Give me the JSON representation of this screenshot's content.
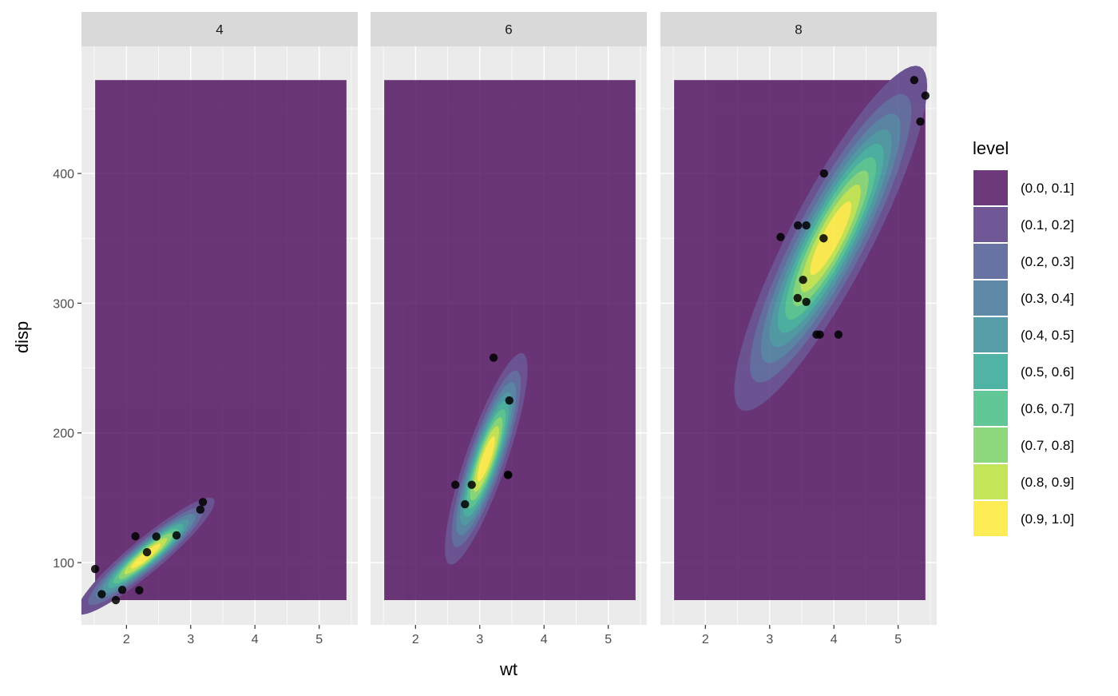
{
  "chart_data": {
    "type": "density_2d_filled_faceted",
    "xlabel": "wt",
    "ylabel": "disp",
    "xlim": [
      1.3,
      5.6
    ],
    "ylim": [
      52,
      498
    ],
    "x_ticks": [
      2,
      3,
      4,
      5
    ],
    "y_ticks": [
      100,
      200,
      300,
      400
    ],
    "grid": true,
    "legend": {
      "title": "level",
      "position": "right",
      "entries": [
        {
          "label": "(0.0, 0.1]",
          "color": "#440154"
        },
        {
          "label": "(0.1, 0.2]",
          "color": "#482878"
        },
        {
          "label": "(0.2, 0.3]",
          "color": "#3E4A89"
        },
        {
          "label": "(0.3, 0.4]",
          "color": "#31688E"
        },
        {
          "label": "(0.4, 0.5]",
          "color": "#26828E"
        },
        {
          "label": "(0.5, 0.6]",
          "color": "#1F9E89"
        },
        {
          "label": "(0.6, 0.7]",
          "color": "#35B779"
        },
        {
          "label": "(0.7, 0.8]",
          "color": "#6DCD59"
        },
        {
          "label": "(0.8, 0.9]",
          "color": "#B4DE2C"
        },
        {
          "label": "(0.9, 1.0]",
          "color": "#FDE725"
        }
      ]
    },
    "density_region": {
      "x": [
        1.513,
        5.424
      ],
      "y": [
        71.1,
        472
      ]
    },
    "panels": [
      {
        "label": "4",
        "density_center": {
          "x": 2.3,
          "y": 105
        },
        "density_spread": {
          "sx": 0.5,
          "sy": 21
        },
        "density_corr": 0.93,
        "points": [
          {
            "x": 2.32,
            "y": 108
          },
          {
            "x": 3.19,
            "y": 146.7
          },
          {
            "x": 3.15,
            "y": 140.8
          },
          {
            "x": 2.2,
            "y": 78.7
          },
          {
            "x": 1.615,
            "y": 75.7
          },
          {
            "x": 1.835,
            "y": 71.1
          },
          {
            "x": 2.465,
            "y": 120.1
          },
          {
            "x": 1.935,
            "y": 79
          },
          {
            "x": 2.14,
            "y": 120.3
          },
          {
            "x": 1.513,
            "y": 95.1
          },
          {
            "x": 2.78,
            "y": 121
          }
        ]
      },
      {
        "label": "6",
        "density_center": {
          "x": 3.1,
          "y": 180
        },
        "density_spread": {
          "sx": 0.3,
          "sy": 38
        },
        "density_corr": 0.85,
        "points": [
          {
            "x": 2.62,
            "y": 160
          },
          {
            "x": 2.875,
            "y": 160
          },
          {
            "x": 3.215,
            "y": 258
          },
          {
            "x": 3.46,
            "y": 225
          },
          {
            "x": 3.44,
            "y": 167.6
          },
          {
            "x": 3.44,
            "y": 167.6
          },
          {
            "x": 2.77,
            "y": 145
          }
        ]
      },
      {
        "label": "8",
        "density_center": {
          "x": 3.95,
          "y": 350
        },
        "density_spread": {
          "sx": 0.7,
          "sy": 62
        },
        "density_corr": 0.88,
        "points": [
          {
            "x": 3.44,
            "y": 360
          },
          {
            "x": 3.57,
            "y": 360
          },
          {
            "x": 4.07,
            "y": 275.8
          },
          {
            "x": 3.73,
            "y": 275.8
          },
          {
            "x": 3.78,
            "y": 275.8
          },
          {
            "x": 5.25,
            "y": 472
          },
          {
            "x": 5.424,
            "y": 460
          },
          {
            "x": 5.345,
            "y": 440
          },
          {
            "x": 3.52,
            "y": 318
          },
          {
            "x": 3.435,
            "y": 304
          },
          {
            "x": 3.84,
            "y": 350
          },
          {
            "x": 3.845,
            "y": 400
          },
          {
            "x": 3.17,
            "y": 351
          },
          {
            "x": 3.57,
            "y": 301
          }
        ]
      }
    ]
  }
}
